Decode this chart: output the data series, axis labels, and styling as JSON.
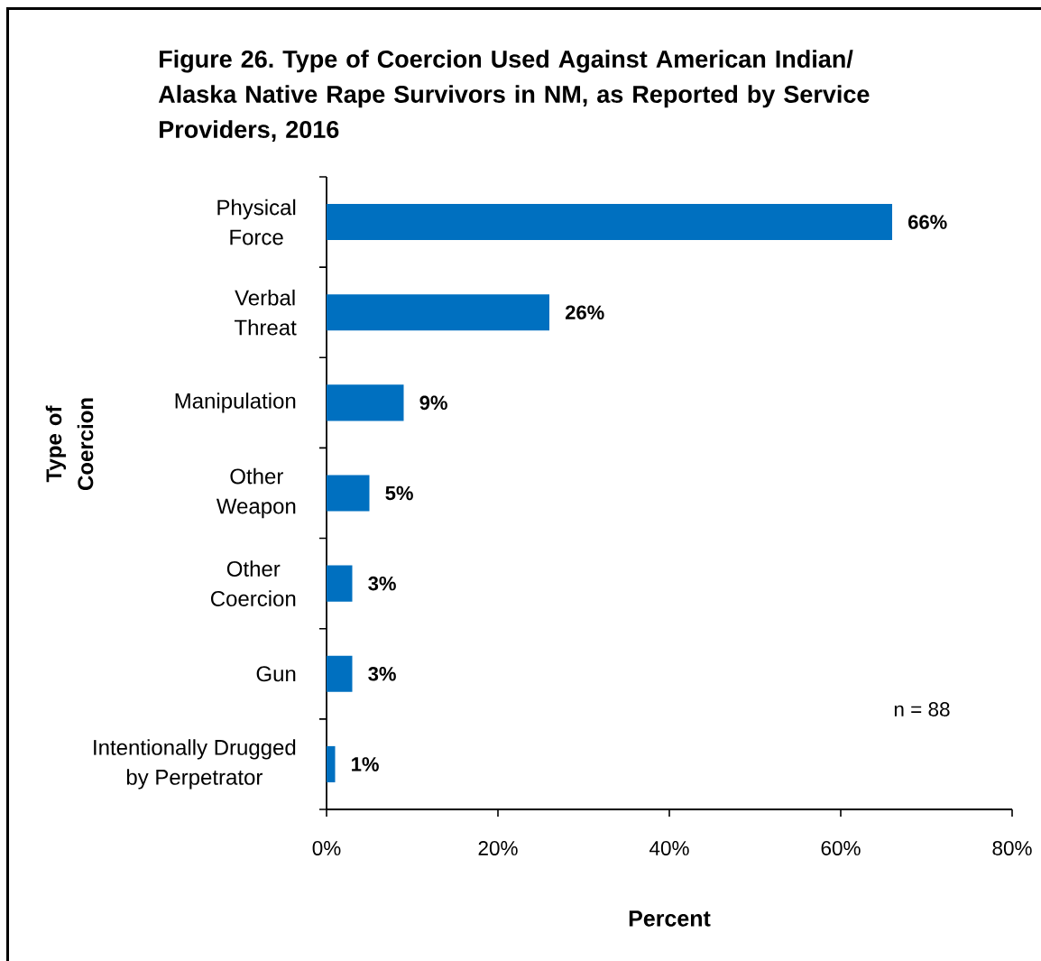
{
  "chart_data": {
    "type": "bar",
    "orientation": "horizontal",
    "title": "Figure 26. Type of Coercion Used Against American Indian/ Alaska Native Rape Survivors in NM, as Reported by Service Providers, 2016",
    "xlabel": "Percent",
    "ylabel": "Type of Coercion",
    "categories": [
      "Physical Force",
      "Verbal Threat",
      "Manipulation",
      "Other Weapon",
      "Other Coercion",
      "Gun",
      "Intentionally Drugged by Perpetrator"
    ],
    "values": [
      66,
      26,
      9,
      5,
      3,
      3,
      1
    ],
    "value_labels": [
      "66%",
      "26%",
      "9%",
      "5%",
      "3%",
      "3%",
      "1%"
    ],
    "color": "#0070c0",
    "xlim": [
      0,
      80
    ],
    "xticks": [
      {
        "value": 0,
        "label": "0%"
      },
      {
        "value": 20,
        "label": "20%"
      },
      {
        "value": 40,
        "label": "40%"
      },
      {
        "value": 60,
        "label": "60%"
      },
      {
        "value": 80,
        "label": "80%"
      }
    ],
    "annotations": [
      "n = 88"
    ]
  }
}
